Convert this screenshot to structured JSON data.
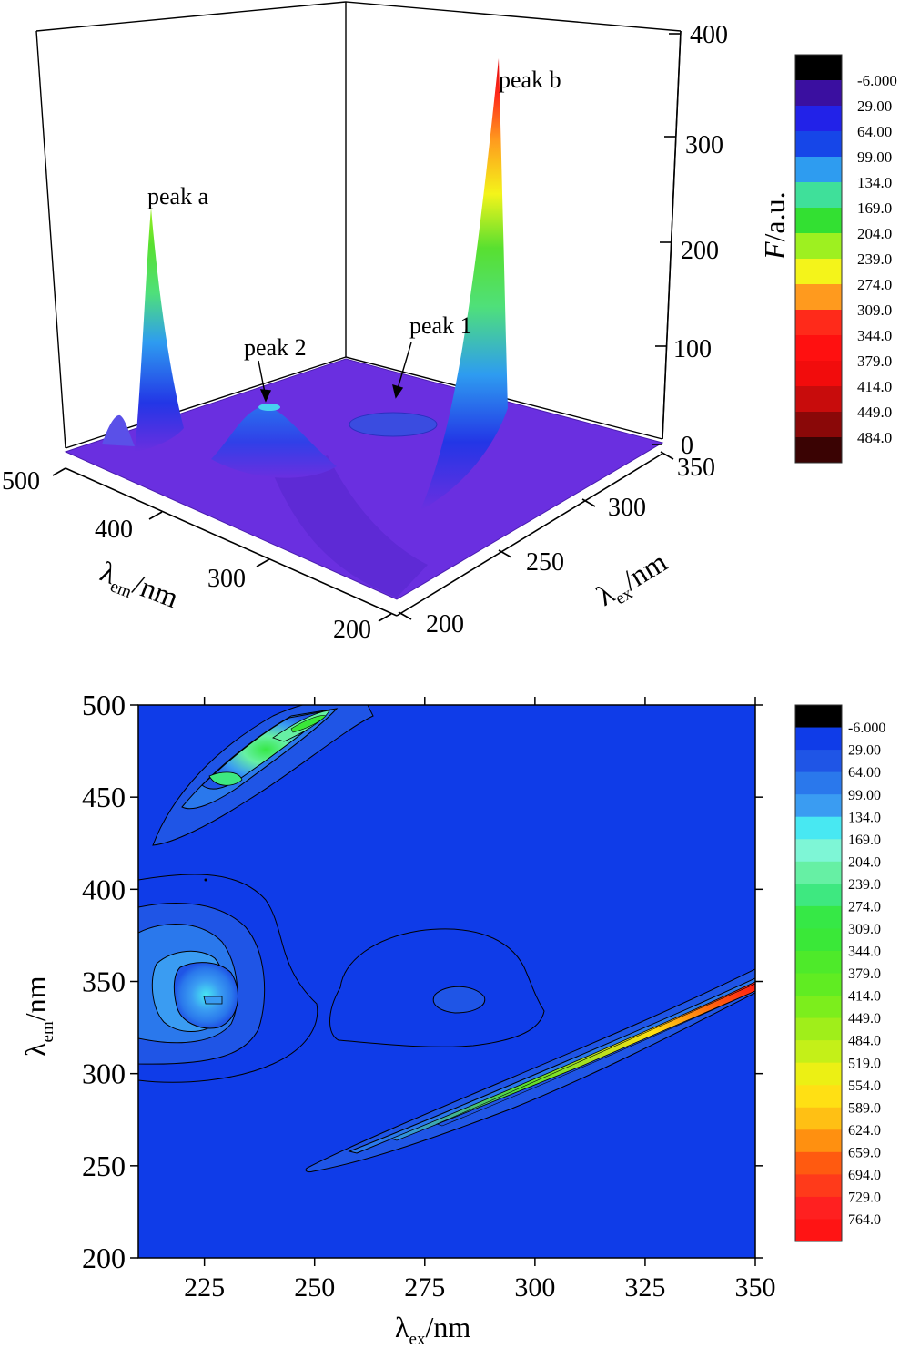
{
  "chart_data": [
    {
      "type": "surface",
      "peak_labels": [
        "peak a",
        "peak b",
        "peak 2",
        "peak 1"
      ],
      "axes": {
        "z": {
          "label_italic": "F",
          "label_rest": "/a.u.",
          "ticks": [
            "0",
            "100",
            "200",
            "300",
            "400"
          ],
          "range": [
            0,
            400
          ]
        },
        "em": {
          "label_main": "λ",
          "label_sub": "em",
          "label_rest": "/nm",
          "ticks": [
            "500",
            "400",
            "300",
            "200"
          ],
          "range": [
            200,
            500
          ]
        },
        "ex": {
          "label_main": "λ",
          "label_sub": "ex",
          "label_rest": "/nm",
          "ticks": [
            "350",
            "300",
            "250",
            "200"
          ],
          "range": [
            200,
            350
          ]
        }
      },
      "peaks": [
        {
          "name": "peak a",
          "ex": 225,
          "em": 460,
          "F": 230
        },
        {
          "name": "peak b",
          "ex": 335,
          "em": 340,
          "F": 385
        },
        {
          "name": "peak 2",
          "ex": 227,
          "em": 340,
          "F": 90
        },
        {
          "name": "peak 1",
          "ex": 280,
          "em": 340,
          "F": 60
        }
      ],
      "colorbar": {
        "labels": [
          "-6.000",
          "29.00",
          "64.00",
          "99.00",
          "134.0",
          "169.0",
          "204.0",
          "239.0",
          "274.0",
          "309.0",
          "344.0",
          "379.0",
          "414.0",
          "449.0",
          "484.0"
        ],
        "colors": [
          "#000000",
          "#3a0fa0",
          "#2222e8",
          "#1646e8",
          "#2e9cf0",
          "#3fe09a",
          "#33e032",
          "#9ef020",
          "#f4f41a",
          "#ff9a1e",
          "#ff2a1a",
          "#ff1010",
          "#f20c0c",
          "#c80c0c",
          "#8a0808",
          "#3a0303"
        ]
      }
    },
    {
      "type": "contour",
      "xlabel_main": "λ",
      "xlabel_sub": "ex",
      "xlabel_rest": "/nm",
      "ylabel_main": "λ",
      "ylabel_sub": "em",
      "ylabel_rest": "/nm",
      "x_ticks": [
        "225",
        "250",
        "275",
        "300",
        "325",
        "350"
      ],
      "y_ticks": [
        "200",
        "250",
        "300",
        "350",
        "400",
        "450",
        "500"
      ],
      "xlim": [
        210,
        350
      ],
      "ylim": [
        200,
        500
      ],
      "features": [
        {
          "name": "peak a",
          "ex": 245,
          "em": 490,
          "level": 274
        },
        {
          "name": "peak 2",
          "ex": 225,
          "em": 340,
          "level": 169
        },
        {
          "name": "peak 1",
          "ex": 283,
          "em": 340,
          "level": 99
        },
        {
          "name": "peak b ridge",
          "ex_start": 250,
          "em_start": 250,
          "ex_end": 350,
          "em_end": 345,
          "level_max": 764
        }
      ],
      "colorbar": {
        "labels": [
          "-6.000",
          "29.00",
          "64.00",
          "99.00",
          "134.0",
          "169.0",
          "204.0",
          "239.0",
          "274.0",
          "309.0",
          "344.0",
          "379.0",
          "414.0",
          "449.0",
          "484.0",
          "519.0",
          "554.0",
          "589.0",
          "624.0",
          "659.0",
          "694.0",
          "729.0",
          "764.0"
        ],
        "colors": [
          "#000000",
          "#0f3ce8",
          "#1f55e6",
          "#2a78ec",
          "#3a9cf2",
          "#48e8f2",
          "#7ef6d6",
          "#66f0a4",
          "#3ee880",
          "#36e846",
          "#3ae838",
          "#4eea2a",
          "#60ec22",
          "#7cee1c",
          "#a0ee1a",
          "#c4f018",
          "#ecf014",
          "#ffe014",
          "#ffc014",
          "#ff9010",
          "#ff5a10",
          "#ff3a1a",
          "#ff2020",
          "#ff1414"
        ]
      }
    }
  ]
}
